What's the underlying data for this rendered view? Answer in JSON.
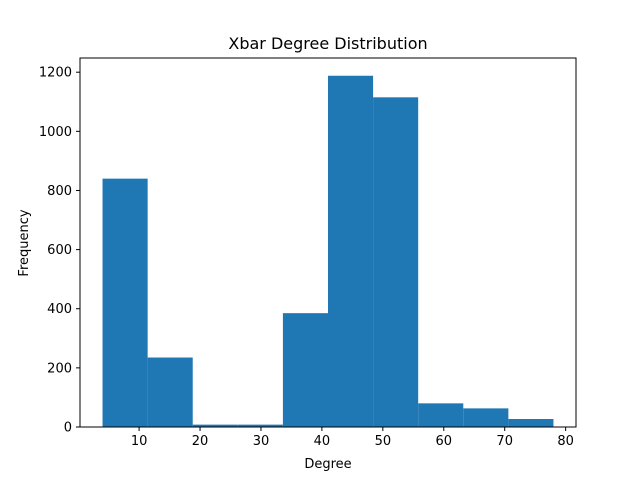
{
  "chart_data": {
    "type": "bar",
    "title": "Xbar Degree Distribution",
    "xlabel": "Degree",
    "ylabel": "Frequency",
    "bin_edges": [
      4,
      11.4,
      18.8,
      26.2,
      33.6,
      41,
      48.4,
      55.8,
      63.2,
      70.6,
      78
    ],
    "values": [
      840,
      235,
      8,
      8,
      385,
      1188,
      1115,
      80,
      63,
      27
    ],
    "xlim": [
      0.3,
      81.7
    ],
    "ylim": [
      0,
      1248
    ],
    "xticks": [
      10,
      20,
      30,
      40,
      50,
      60,
      70,
      80
    ],
    "yticks": [
      0,
      200,
      400,
      600,
      800,
      1000,
      1200
    ],
    "bar_color": "#1f77b4",
    "grid": false,
    "legend": false
  }
}
